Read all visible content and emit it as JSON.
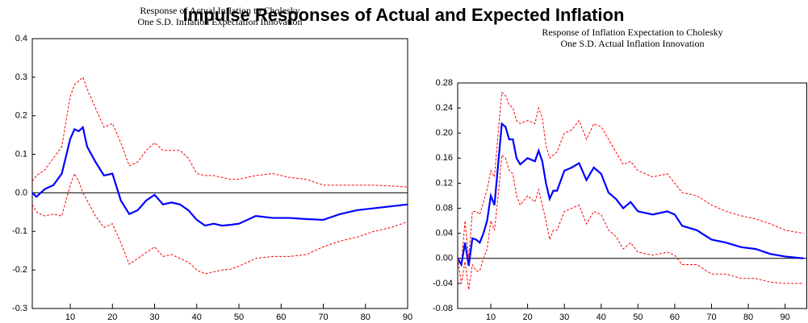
{
  "title": "Impulse Responses of Actual and Expected Inflation",
  "chart_data": [
    {
      "type": "line",
      "subtitle": [
        "Response of Actual Inflation to Cholesky",
        "One S.D. Inflation Expectation Innovation"
      ],
      "x": [
        1,
        2,
        4,
        6,
        8,
        10,
        11,
        12,
        13,
        14,
        16,
        18,
        20,
        22,
        24,
        26,
        28,
        30,
        32,
        34,
        36,
        38,
        40,
        42,
        44,
        46,
        48,
        50,
        54,
        58,
        62,
        66,
        70,
        74,
        78,
        82,
        86,
        90
      ],
      "series": [
        {
          "color": "#ff0000",
          "dashed": true,
          "values": [
            0.03,
            0.045,
            0.06,
            0.09,
            0.12,
            0.25,
            0.28,
            0.29,
            0.3,
            0.27,
            0.22,
            0.17,
            0.18,
            0.13,
            0.07,
            0.08,
            0.11,
            0.13,
            0.11,
            0.11,
            0.11,
            0.09,
            0.05,
            0.045,
            0.045,
            0.04,
            0.035,
            0.035,
            0.045,
            0.05,
            0.04,
            0.035,
            0.02,
            0.02,
            0.02,
            0.02,
            0.018,
            0.015
          ]
        },
        {
          "color": "#0000ff",
          "dashed": false,
          "values": [
            0,
            -0.01,
            0.01,
            0.02,
            0.05,
            0.14,
            0.165,
            0.16,
            0.17,
            0.12,
            0.08,
            0.045,
            0.05,
            -0.02,
            -0.055,
            -0.045,
            -0.02,
            -0.005,
            -0.03,
            -0.025,
            -0.03,
            -0.045,
            -0.07,
            -0.085,
            -0.08,
            -0.085,
            -0.083,
            -0.08,
            -0.06,
            -0.065,
            -0.065,
            -0.068,
            -0.07,
            -0.055,
            -0.045,
            -0.04,
            -0.035,
            -0.03
          ]
        },
        {
          "color": "#ff0000",
          "dashed": true,
          "values": [
            -0.03,
            -0.05,
            -0.06,
            -0.055,
            -0.06,
            0.02,
            0.05,
            0.03,
            0.0,
            -0.02,
            -0.06,
            -0.09,
            -0.08,
            -0.13,
            -0.185,
            -0.17,
            -0.155,
            -0.14,
            -0.165,
            -0.16,
            -0.17,
            -0.18,
            -0.2,
            -0.21,
            -0.205,
            -0.2,
            -0.198,
            -0.19,
            -0.17,
            -0.165,
            -0.165,
            -0.16,
            -0.14,
            -0.125,
            -0.115,
            -0.1,
            -0.09,
            -0.075
          ]
        }
      ],
      "xlim": [
        1,
        90
      ],
      "xticks": [
        10,
        20,
        30,
        40,
        50,
        60,
        70,
        80,
        90
      ],
      "ylim": [
        -0.3,
        0.4
      ],
      "yticks": [
        -0.3,
        -0.2,
        -0.1,
        {
          "value": 0,
          "label": "0.0"
        },
        0.1,
        0.2,
        0.3,
        0.4
      ]
    },
    {
      "type": "line",
      "subtitle": [
        "Response of Inflation Expectation to Cholesky",
        "One S.D. Actual Inflation Innovation"
      ],
      "x": [
        1,
        2,
        3,
        4,
        5,
        6,
        7,
        8,
        9,
        10,
        11,
        12,
        13,
        14,
        15,
        16,
        17,
        18,
        20,
        22,
        23,
        24,
        25,
        26,
        27,
        28,
        30,
        32,
        34,
        36,
        38,
        40,
        42,
        44,
        46,
        48,
        50,
        54,
        58,
        60,
        62,
        66,
        70,
        74,
        78,
        82,
        86,
        90,
        95
      ],
      "series": [
        {
          "color": "#ff0000",
          "dashed": true,
          "values": [
            0,
            -0.01,
            0.06,
            0.0,
            0.075,
            0.075,
            0.07,
            0.09,
            0.11,
            0.14,
            0.13,
            0.2,
            0.265,
            0.26,
            0.245,
            0.24,
            0.22,
            0.215,
            0.22,
            0.215,
            0.24,
            0.225,
            0.18,
            0.16,
            0.165,
            0.17,
            0.2,
            0.205,
            0.22,
            0.19,
            0.215,
            0.21,
            0.19,
            0.17,
            0.15,
            0.155,
            0.14,
            0.13,
            0.135,
            0.12,
            0.105,
            0.1,
            0.085,
            0.075,
            0.068,
            0.063,
            0.055,
            0.045,
            0.04
          ]
        },
        {
          "color": "#0000ff",
          "dashed": false,
          "values": [
            0,
            -0.01,
            0.025,
            -0.012,
            0.032,
            0.03,
            0.025,
            0.04,
            0.06,
            0.1,
            0.085,
            0.15,
            0.215,
            0.21,
            0.19,
            0.19,
            0.16,
            0.15,
            0.16,
            0.155,
            0.172,
            0.155,
            0.12,
            0.095,
            0.108,
            0.108,
            0.14,
            0.145,
            0.152,
            0.125,
            0.145,
            0.135,
            0.105,
            0.095,
            0.08,
            0.09,
            0.075,
            0.07,
            0.075,
            0.07,
            0.052,
            0.045,
            0.03,
            0.025,
            0.018,
            0.015,
            0.007,
            0.003,
            0
          ]
        },
        {
          "color": "#ff0000",
          "dashed": true,
          "values": [
            0,
            -0.04,
            -0.005,
            -0.05,
            -0.01,
            -0.02,
            -0.02,
            0.0,
            0.015,
            0.06,
            0.045,
            0.1,
            0.165,
            0.16,
            0.14,
            0.135,
            0.1,
            0.085,
            0.1,
            0.09,
            0.11,
            0.085,
            0.06,
            0.03,
            0.045,
            0.045,
            0.075,
            0.08,
            0.085,
            0.055,
            0.075,
            0.07,
            0.045,
            0.035,
            0.015,
            0.025,
            0.01,
            0.005,
            0.01,
            0.005,
            -0.01,
            -0.01,
            -0.025,
            -0.025,
            -0.032,
            -0.032,
            -0.038,
            -0.04,
            -0.04
          ]
        }
      ],
      "xlim": [
        1,
        96
      ],
      "xticks": [
        10,
        20,
        30,
        40,
        50,
        60,
        70,
        80,
        90
      ],
      "ylim": [
        -0.08,
        0.28
      ],
      "yticks": [
        -0.08,
        -0.04,
        {
          "value": 0,
          "label": "0.00"
        },
        0.04,
        0.08,
        0.12,
        0.16,
        {
          "value": 0.2,
          "label": "0.20"
        },
        0.24,
        0.28
      ]
    }
  ]
}
